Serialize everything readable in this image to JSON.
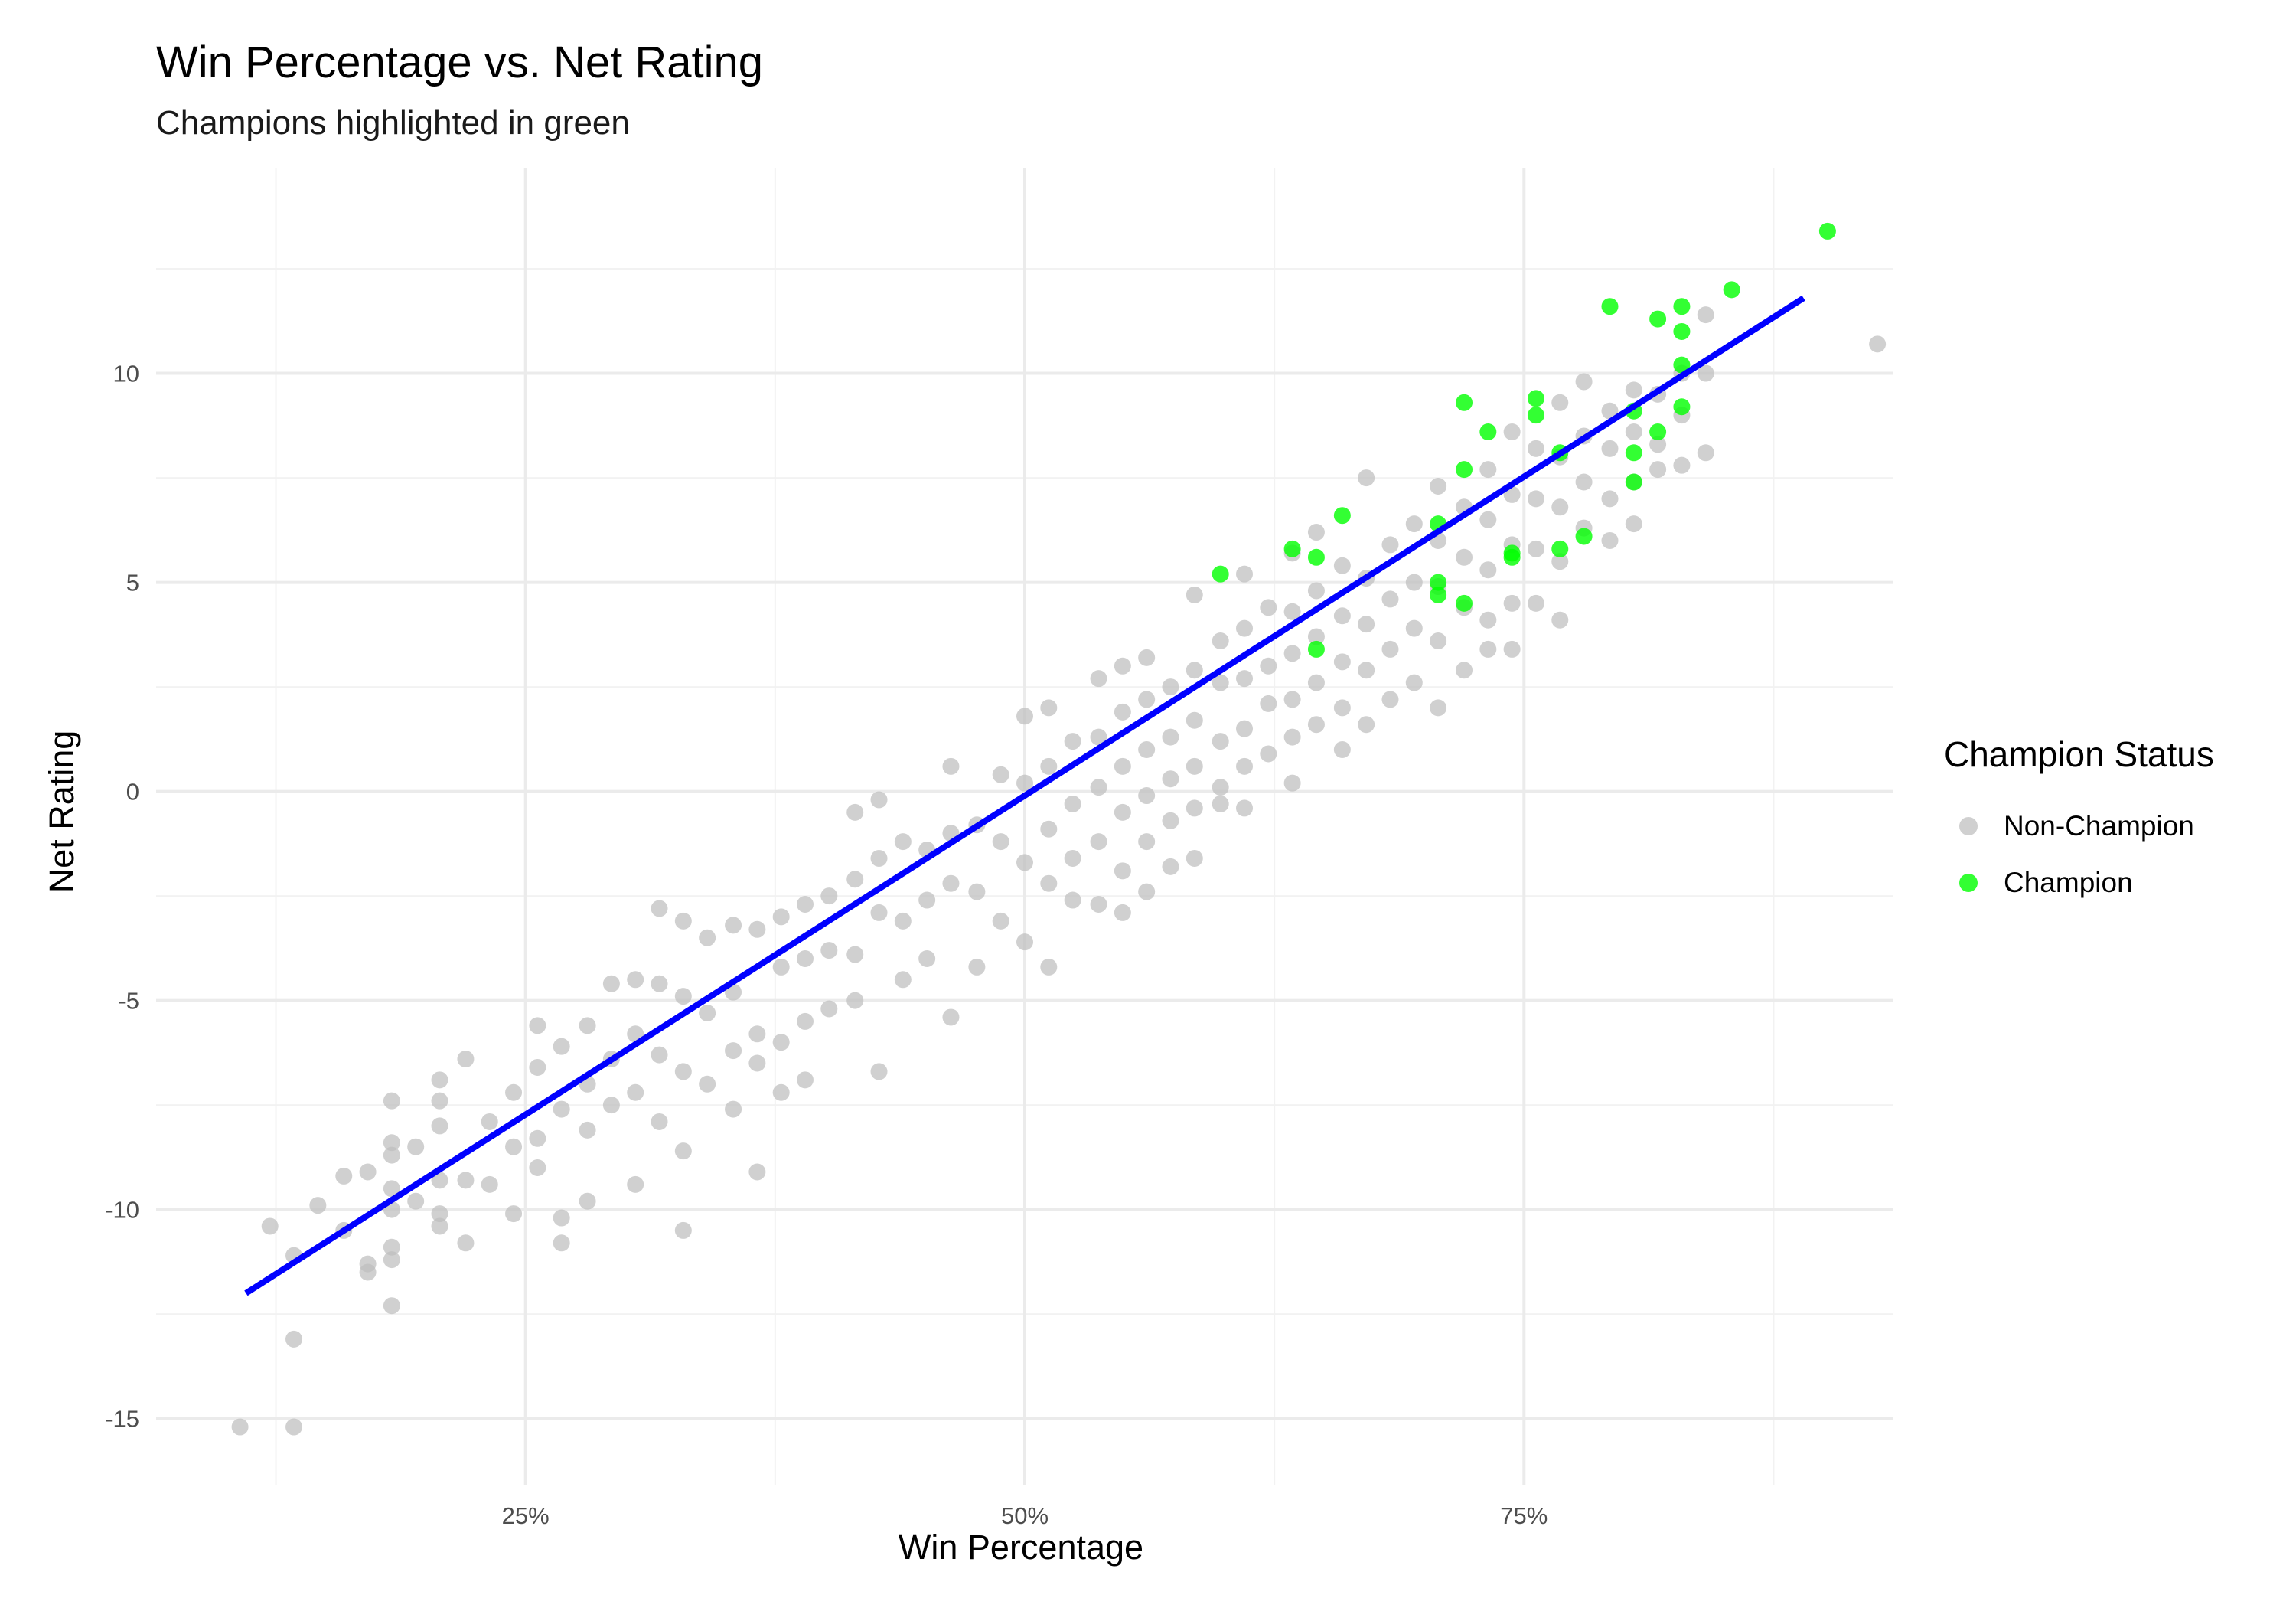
{
  "chart_data": {
    "type": "scatter",
    "title": "Win Percentage vs. Net Rating",
    "subtitle": "Champions highlighted in green",
    "xlabel": "Win Percentage",
    "ylabel": "Net Rating",
    "xlim": [
      0.065,
      0.935
    ],
    "ylim": [
      -16.6,
      14.9
    ],
    "x_ticks": [
      0.25,
      0.5,
      0.75
    ],
    "x_tick_labels": [
      "25%",
      "50%",
      "75%"
    ],
    "y_ticks": [
      -15,
      -10,
      -5,
      0,
      5,
      10
    ],
    "y_tick_labels": [
      "-15",
      "-10",
      "-5",
      "0",
      "5",
      "10"
    ],
    "grid": true,
    "legend": {
      "title": "Champion Status",
      "position": "right",
      "entries": [
        {
          "label": "Non-Champion",
          "color": "#BEBEBE"
        },
        {
          "label": "Champion",
          "color": "#00FF00"
        }
      ]
    },
    "trend_line": {
      "color": "#0000FF",
      "from": [
        0.11,
        -12.0
      ],
      "to": [
        0.89,
        11.8
      ]
    },
    "series": [
      {
        "name": "Non-Champion",
        "color": "#BEBEBE",
        "points": [
          [
            0.107,
            -15.2
          ],
          [
            0.134,
            -15.2
          ],
          [
            0.134,
            -13.1
          ],
          [
            0.122,
            -10.4
          ],
          [
            0.134,
            -11.1
          ],
          [
            0.146,
            -9.9
          ],
          [
            0.159,
            -9.2
          ],
          [
            0.159,
            -10.5
          ],
          [
            0.171,
            -9.1
          ],
          [
            0.171,
            -11.3
          ],
          [
            0.171,
            -11.5
          ],
          [
            0.183,
            -12.3
          ],
          [
            0.183,
            -10.9
          ],
          [
            0.183,
            -11.2
          ],
          [
            0.183,
            -10.0
          ],
          [
            0.183,
            -9.5
          ],
          [
            0.183,
            -8.4
          ],
          [
            0.183,
            -8.7
          ],
          [
            0.183,
            -7.4
          ],
          [
            0.195,
            -8.5
          ],
          [
            0.195,
            -9.8
          ],
          [
            0.207,
            -6.9
          ],
          [
            0.207,
            -7.4
          ],
          [
            0.207,
            -8.0
          ],
          [
            0.207,
            -9.3
          ],
          [
            0.207,
            -10.1
          ],
          [
            0.207,
            -10.4
          ],
          [
            0.22,
            -6.4
          ],
          [
            0.22,
            -9.3
          ],
          [
            0.22,
            -10.8
          ],
          [
            0.232,
            -7.9
          ],
          [
            0.232,
            -9.4
          ],
          [
            0.244,
            -7.2
          ],
          [
            0.244,
            -8.5
          ],
          [
            0.244,
            -10.1
          ],
          [
            0.256,
            -5.6
          ],
          [
            0.256,
            -6.6
          ],
          [
            0.256,
            -8.3
          ],
          [
            0.256,
            -9.0
          ],
          [
            0.268,
            -6.1
          ],
          [
            0.268,
            -7.6
          ],
          [
            0.268,
            -10.2
          ],
          [
            0.268,
            -10.8
          ],
          [
            0.281,
            -5.6
          ],
          [
            0.281,
            -7.0
          ],
          [
            0.281,
            -8.1
          ],
          [
            0.281,
            -9.8
          ],
          [
            0.293,
            -4.6
          ],
          [
            0.293,
            -6.4
          ],
          [
            0.293,
            -7.5
          ],
          [
            0.305,
            -4.5
          ],
          [
            0.305,
            -5.8
          ],
          [
            0.305,
            -7.2
          ],
          [
            0.305,
            -9.4
          ],
          [
            0.317,
            -2.8
          ],
          [
            0.317,
            -4.6
          ],
          [
            0.317,
            -6.3
          ],
          [
            0.317,
            -7.9
          ],
          [
            0.329,
            -3.1
          ],
          [
            0.329,
            -4.9
          ],
          [
            0.329,
            -6.7
          ],
          [
            0.329,
            -8.6
          ],
          [
            0.329,
            -10.5
          ],
          [
            0.341,
            -3.5
          ],
          [
            0.341,
            -5.3
          ],
          [
            0.341,
            -7.0
          ],
          [
            0.354,
            -3.2
          ],
          [
            0.354,
            -4.8
          ],
          [
            0.354,
            -6.2
          ],
          [
            0.354,
            -7.6
          ],
          [
            0.366,
            -3.3
          ],
          [
            0.366,
            -5.8
          ],
          [
            0.366,
            -6.5
          ],
          [
            0.366,
            -9.1
          ],
          [
            0.378,
            -3.0
          ],
          [
            0.378,
            -4.2
          ],
          [
            0.378,
            -6.0
          ],
          [
            0.378,
            -7.2
          ],
          [
            0.39,
            -2.7
          ],
          [
            0.39,
            -4.0
          ],
          [
            0.39,
            -5.5
          ],
          [
            0.39,
            -6.9
          ],
          [
            0.402,
            -2.5
          ],
          [
            0.402,
            -3.8
          ],
          [
            0.402,
            -5.2
          ],
          [
            0.415,
            -0.5
          ],
          [
            0.415,
            -2.1
          ],
          [
            0.415,
            -3.9
          ],
          [
            0.415,
            -5.0
          ],
          [
            0.427,
            -0.2
          ],
          [
            0.427,
            -1.6
          ],
          [
            0.427,
            -2.9
          ],
          [
            0.427,
            -6.7
          ],
          [
            0.439,
            -1.2
          ],
          [
            0.439,
            -3.1
          ],
          [
            0.439,
            -4.5
          ],
          [
            0.451,
            -1.4
          ],
          [
            0.451,
            -2.6
          ],
          [
            0.451,
            -4.0
          ],
          [
            0.463,
            0.6
          ],
          [
            0.463,
            -1.0
          ],
          [
            0.463,
            -2.2
          ],
          [
            0.463,
            -5.4
          ],
          [
            0.476,
            -0.8
          ],
          [
            0.476,
            -2.4
          ],
          [
            0.476,
            -4.2
          ],
          [
            0.488,
            0.4
          ],
          [
            0.488,
            -1.2
          ],
          [
            0.488,
            -3.1
          ],
          [
            0.5,
            1.8
          ],
          [
            0.5,
            0.2
          ],
          [
            0.5,
            -1.7
          ],
          [
            0.5,
            -3.6
          ],
          [
            0.512,
            2.0
          ],
          [
            0.512,
            0.6
          ],
          [
            0.512,
            -0.9
          ],
          [
            0.512,
            -2.2
          ],
          [
            0.512,
            -4.2
          ],
          [
            0.524,
            1.2
          ],
          [
            0.524,
            -0.3
          ],
          [
            0.524,
            -1.6
          ],
          [
            0.524,
            -2.6
          ],
          [
            0.537,
            2.7
          ],
          [
            0.537,
            1.3
          ],
          [
            0.537,
            0.1
          ],
          [
            0.537,
            -1.2
          ],
          [
            0.537,
            -2.7
          ],
          [
            0.549,
            3.0
          ],
          [
            0.549,
            1.9
          ],
          [
            0.549,
            0.6
          ],
          [
            0.549,
            -0.5
          ],
          [
            0.549,
            -1.9
          ],
          [
            0.549,
            -2.9
          ],
          [
            0.561,
            3.2
          ],
          [
            0.561,
            2.2
          ],
          [
            0.561,
            1.0
          ],
          [
            0.561,
            -0.1
          ],
          [
            0.561,
            -1.2
          ],
          [
            0.561,
            -2.4
          ],
          [
            0.573,
            2.5
          ],
          [
            0.573,
            1.3
          ],
          [
            0.573,
            0.3
          ],
          [
            0.573,
            -0.7
          ],
          [
            0.573,
            -1.8
          ],
          [
            0.585,
            4.7
          ],
          [
            0.585,
            2.9
          ],
          [
            0.585,
            1.7
          ],
          [
            0.585,
            0.6
          ],
          [
            0.585,
            -0.4
          ],
          [
            0.585,
            -1.6
          ],
          [
            0.598,
            3.6
          ],
          [
            0.598,
            2.6
          ],
          [
            0.598,
            1.2
          ],
          [
            0.598,
            0.1
          ],
          [
            0.598,
            -0.3
          ],
          [
            0.61,
            5.2
          ],
          [
            0.61,
            3.9
          ],
          [
            0.61,
            2.7
          ],
          [
            0.61,
            1.5
          ],
          [
            0.61,
            0.6
          ],
          [
            0.61,
            -0.4
          ],
          [
            0.622,
            4.4
          ],
          [
            0.622,
            3.0
          ],
          [
            0.622,
            2.1
          ],
          [
            0.622,
            0.9
          ],
          [
            0.634,
            5.7
          ],
          [
            0.634,
            4.3
          ],
          [
            0.634,
            3.3
          ],
          [
            0.634,
            2.2
          ],
          [
            0.634,
            1.3
          ],
          [
            0.634,
            0.2
          ],
          [
            0.646,
            6.2
          ],
          [
            0.646,
            4.8
          ],
          [
            0.646,
            3.7
          ],
          [
            0.646,
            2.6
          ],
          [
            0.646,
            1.6
          ],
          [
            0.659,
            5.4
          ],
          [
            0.659,
            4.2
          ],
          [
            0.659,
            3.1
          ],
          [
            0.659,
            2.0
          ],
          [
            0.659,
            1.0
          ],
          [
            0.671,
            7.5
          ],
          [
            0.671,
            5.1
          ],
          [
            0.671,
            4.0
          ],
          [
            0.671,
            2.9
          ],
          [
            0.671,
            1.6
          ],
          [
            0.683,
            5.9
          ],
          [
            0.683,
            4.6
          ],
          [
            0.683,
            3.4
          ],
          [
            0.683,
            2.2
          ],
          [
            0.695,
            6.4
          ],
          [
            0.695,
            5.0
          ],
          [
            0.695,
            3.9
          ],
          [
            0.695,
            2.6
          ],
          [
            0.707,
            7.3
          ],
          [
            0.707,
            6.0
          ],
          [
            0.707,
            4.9
          ],
          [
            0.707,
            3.6
          ],
          [
            0.707,
            2.0
          ],
          [
            0.72,
            6.8
          ],
          [
            0.72,
            5.6
          ],
          [
            0.72,
            4.4
          ],
          [
            0.72,
            2.9
          ],
          [
            0.732,
            7.7
          ],
          [
            0.732,
            6.5
          ],
          [
            0.732,
            5.3
          ],
          [
            0.732,
            4.1
          ],
          [
            0.732,
            3.4
          ],
          [
            0.744,
            8.6
          ],
          [
            0.744,
            7.1
          ],
          [
            0.744,
            5.9
          ],
          [
            0.744,
            4.5
          ],
          [
            0.744,
            3.4
          ],
          [
            0.756,
            8.2
          ],
          [
            0.756,
            7.0
          ],
          [
            0.756,
            5.8
          ],
          [
            0.756,
            4.5
          ],
          [
            0.768,
            9.3
          ],
          [
            0.768,
            8.0
          ],
          [
            0.768,
            6.8
          ],
          [
            0.768,
            5.5
          ],
          [
            0.768,
            4.1
          ],
          [
            0.78,
            9.8
          ],
          [
            0.78,
            8.5
          ],
          [
            0.78,
            7.4
          ],
          [
            0.78,
            6.3
          ],
          [
            0.793,
            9.1
          ],
          [
            0.793,
            8.2
          ],
          [
            0.793,
            7.0
          ],
          [
            0.793,
            6.0
          ],
          [
            0.805,
            9.6
          ],
          [
            0.805,
            8.6
          ],
          [
            0.805,
            7.4
          ],
          [
            0.805,
            6.4
          ],
          [
            0.817,
            9.5
          ],
          [
            0.817,
            8.3
          ],
          [
            0.817,
            7.7
          ],
          [
            0.829,
            10.0
          ],
          [
            0.829,
            9.0
          ],
          [
            0.829,
            7.8
          ],
          [
            0.841,
            11.4
          ],
          [
            0.841,
            10.0
          ],
          [
            0.841,
            8.1
          ],
          [
            0.927,
            10.7
          ]
        ]
      },
      {
        "name": "Champion",
        "color": "#00FF00",
        "points": [
          [
            0.598,
            5.2
          ],
          [
            0.634,
            5.8
          ],
          [
            0.646,
            5.6
          ],
          [
            0.646,
            3.4
          ],
          [
            0.659,
            6.6
          ],
          [
            0.707,
            5.0
          ],
          [
            0.707,
            4.7
          ],
          [
            0.707,
            6.4
          ],
          [
            0.72,
            9.3
          ],
          [
            0.72,
            7.7
          ],
          [
            0.72,
            4.5
          ],
          [
            0.732,
            8.6
          ],
          [
            0.744,
            5.7
          ],
          [
            0.744,
            5.6
          ],
          [
            0.756,
            9.0
          ],
          [
            0.756,
            9.4
          ],
          [
            0.768,
            8.1
          ],
          [
            0.768,
            5.8
          ],
          [
            0.78,
            6.1
          ],
          [
            0.793,
            11.6
          ],
          [
            0.805,
            9.1
          ],
          [
            0.805,
            8.1
          ],
          [
            0.805,
            7.4
          ],
          [
            0.817,
            11.3
          ],
          [
            0.817,
            8.6
          ],
          [
            0.829,
            11.6
          ],
          [
            0.829,
            11.0
          ],
          [
            0.829,
            10.2
          ],
          [
            0.829,
            9.2
          ],
          [
            0.854,
            12.0
          ],
          [
            0.902,
            13.4
          ]
        ]
      }
    ]
  }
}
